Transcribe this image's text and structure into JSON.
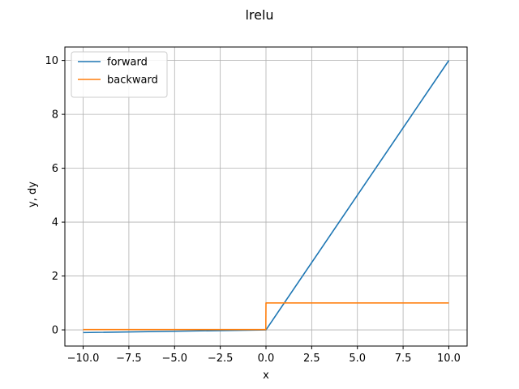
{
  "chart_data": {
    "type": "line",
    "title": "lrelu",
    "xlabel": "x",
    "ylabel": "y, dy",
    "xlim": [
      -11,
      11
    ],
    "ylim": [
      -0.6,
      10.5
    ],
    "xticks": [
      -10.0,
      -7.5,
      -5.0,
      -2.5,
      0.0,
      2.5,
      5.0,
      7.5,
      10.0
    ],
    "xtick_labels": [
      "−10.0",
      "−7.5",
      "−5.0",
      "−2.5",
      "0.0",
      "2.5",
      "5.0",
      "7.5",
      "10.0"
    ],
    "yticks": [
      0,
      2,
      4,
      6,
      8,
      10
    ],
    "ytick_labels": [
      "0",
      "2",
      "4",
      "6",
      "8",
      "10"
    ],
    "grid": true,
    "legend_position": "top-left",
    "series": [
      {
        "name": "forward",
        "color": "#1f77b4",
        "x": [
          -10,
          0,
          10
        ],
        "y": [
          -0.1,
          0,
          10
        ]
      },
      {
        "name": "backward",
        "color": "#ff7f0e",
        "x": [
          -10,
          -0.01,
          0,
          10
        ],
        "y": [
          0.01,
          0.01,
          1,
          1
        ]
      }
    ]
  }
}
